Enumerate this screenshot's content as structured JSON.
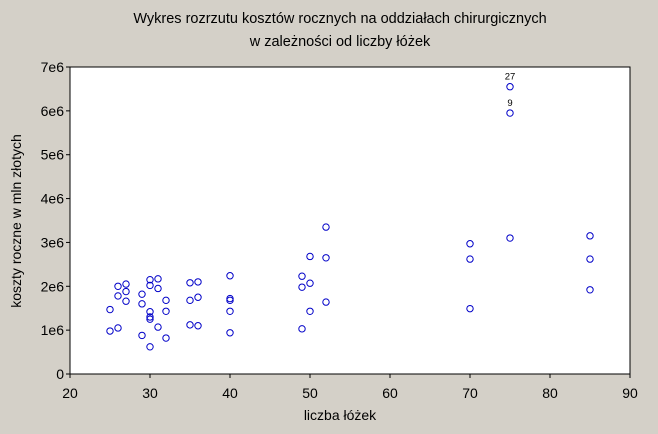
{
  "chart_data": {
    "type": "scatter",
    "title": [
      "Wykres rozrzutu kosztów rocznych na oddziałach chirurgicznych",
      "w zależności od liczby łóżek"
    ],
    "xlabel": "liczba łóżek",
    "ylabel": "koszty roczne w mln złotych",
    "xlim": [
      20,
      90
    ],
    "ylim": [
      0,
      7000000
    ],
    "xticks": [
      20,
      30,
      40,
      50,
      60,
      70,
      80,
      90
    ],
    "yticks": [
      0,
      1000000,
      2000000,
      3000000,
      4000000,
      5000000,
      6000000,
      7000000
    ],
    "ytick_labels": [
      "0",
      "1e6",
      "2e6",
      "3e6",
      "4e6",
      "5e6",
      "6e6",
      "7e6"
    ],
    "marker_color": "#0000c8",
    "points": [
      {
        "x": 25,
        "y": 1470000
      },
      {
        "x": 25,
        "y": 980000
      },
      {
        "x": 26,
        "y": 2000000
      },
      {
        "x": 26,
        "y": 1780000
      },
      {
        "x": 26,
        "y": 1050000
      },
      {
        "x": 27,
        "y": 2050000
      },
      {
        "x": 27,
        "y": 1880000
      },
      {
        "x": 27,
        "y": 1660000
      },
      {
        "x": 29,
        "y": 1820000
      },
      {
        "x": 29,
        "y": 1600000
      },
      {
        "x": 29,
        "y": 880000
      },
      {
        "x": 30,
        "y": 2150000
      },
      {
        "x": 30,
        "y": 2020000
      },
      {
        "x": 30,
        "y": 1420000
      },
      {
        "x": 30,
        "y": 1300000
      },
      {
        "x": 30,
        "y": 1250000
      },
      {
        "x": 30,
        "y": 620000
      },
      {
        "x": 31,
        "y": 2170000
      },
      {
        "x": 31,
        "y": 1950000
      },
      {
        "x": 31,
        "y": 1070000
      },
      {
        "x": 32,
        "y": 1680000
      },
      {
        "x": 32,
        "y": 1430000
      },
      {
        "x": 32,
        "y": 820000
      },
      {
        "x": 35,
        "y": 2080000
      },
      {
        "x": 35,
        "y": 1680000
      },
      {
        "x": 35,
        "y": 1120000
      },
      {
        "x": 36,
        "y": 2100000
      },
      {
        "x": 36,
        "y": 1750000
      },
      {
        "x": 36,
        "y": 1100000
      },
      {
        "x": 40,
        "y": 2240000
      },
      {
        "x": 40,
        "y": 1720000
      },
      {
        "x": 40,
        "y": 1680000
      },
      {
        "x": 40,
        "y": 1430000
      },
      {
        "x": 40,
        "y": 940000
      },
      {
        "x": 49,
        "y": 2230000
      },
      {
        "x": 49,
        "y": 1980000
      },
      {
        "x": 49,
        "y": 1030000
      },
      {
        "x": 50,
        "y": 2680000
      },
      {
        "x": 50,
        "y": 2070000
      },
      {
        "x": 50,
        "y": 1430000
      },
      {
        "x": 52,
        "y": 3350000
      },
      {
        "x": 52,
        "y": 2650000
      },
      {
        "x": 52,
        "y": 1640000
      },
      {
        "x": 70,
        "y": 2970000
      },
      {
        "x": 70,
        "y": 2620000
      },
      {
        "x": 70,
        "y": 1490000
      },
      {
        "x": 75,
        "y": 6550000,
        "label": "27"
      },
      {
        "x": 75,
        "y": 5950000,
        "label": "9"
      },
      {
        "x": 75,
        "y": 3100000
      },
      {
        "x": 85,
        "y": 3150000
      },
      {
        "x": 85,
        "y": 2620000
      },
      {
        "x": 85,
        "y": 1920000
      }
    ]
  }
}
